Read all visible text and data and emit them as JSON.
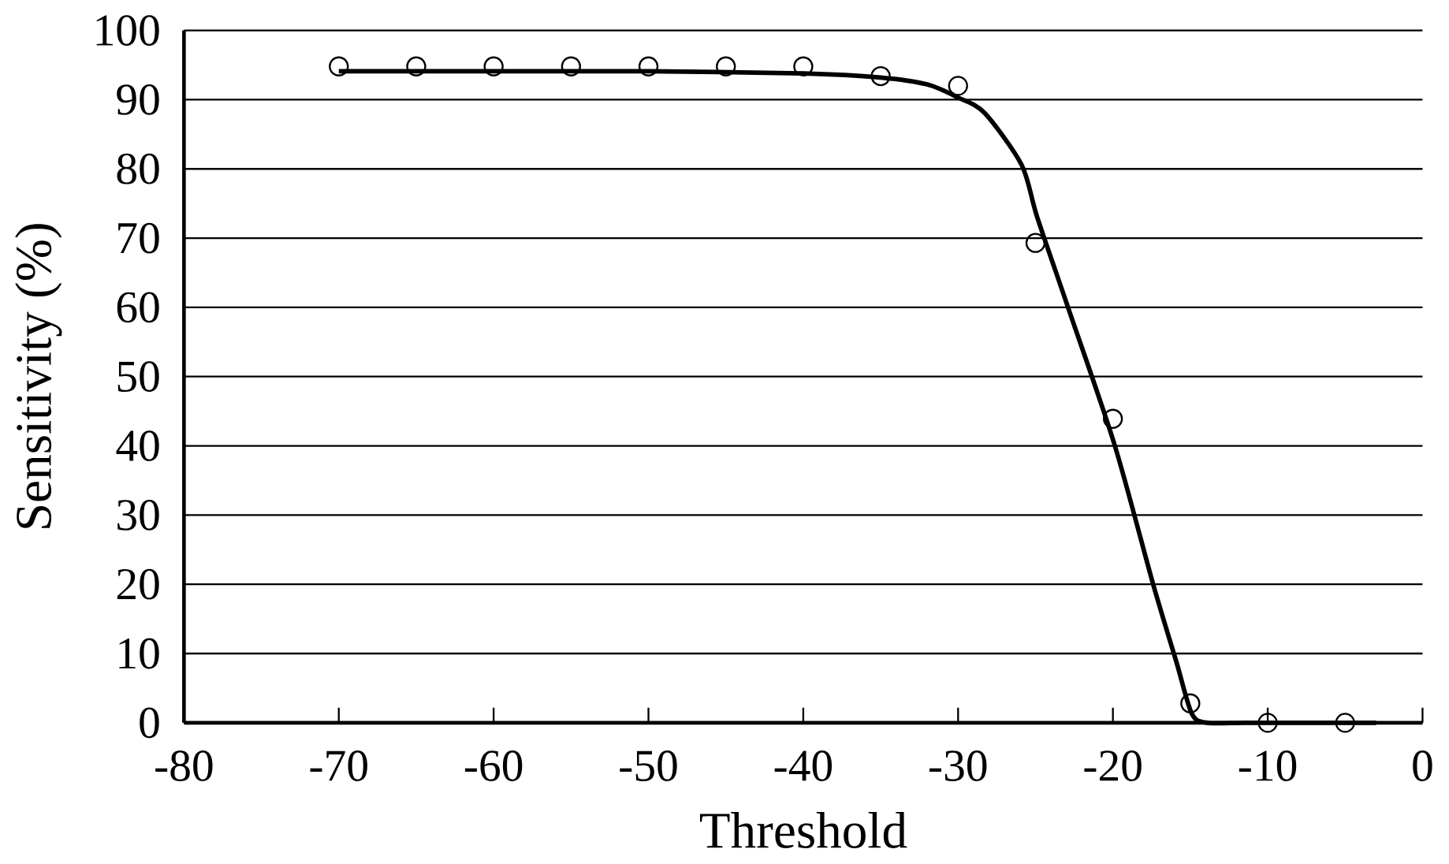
{
  "chart_data": {
    "type": "scatter",
    "xlabel": "Threshold",
    "ylabel": "Sensitivity (%)",
    "xlim": [
      -80,
      0
    ],
    "xticks": [
      -80,
      -70,
      -60,
      -50,
      -40,
      -30,
      -20,
      -10,
      0
    ],
    "ylim": [
      0,
      100
    ],
    "yticks": [
      0,
      10,
      20,
      30,
      40,
      50,
      60,
      70,
      80,
      90,
      100
    ],
    "grid": "y",
    "series": [
      {
        "type": "scatter",
        "marker": "circle",
        "color": "#000000",
        "x": [
          -70,
          -65,
          -60,
          -55,
          -50,
          -45,
          -40,
          -35,
          -30,
          -25,
          -20,
          -15,
          -10,
          -5
        ],
        "values": [
          94.8,
          94.8,
          94.8,
          94.8,
          94.8,
          94.8,
          94.8,
          93.4,
          92.0,
          69.3,
          43.9,
          2.8,
          0,
          0
        ]
      },
      {
        "type": "line",
        "marker": "none",
        "color": "#000000",
        "x": [
          -70,
          -60,
          -50,
          -40,
          -35,
          -32,
          -30,
          -28.3,
          -25.9,
          -24.9,
          -22.9,
          -19.9,
          -17.4,
          -15.9,
          -14.9,
          -13.9,
          -11.5,
          -8,
          -3
        ],
        "values": [
          94.1,
          94.1,
          94.1,
          93.8,
          93.2,
          92.2,
          90.3,
          88.1,
          80.6,
          73.1,
          60,
          40.2,
          20,
          8.8,
          1.3,
          0,
          0,
          0,
          0
        ]
      }
    ]
  }
}
